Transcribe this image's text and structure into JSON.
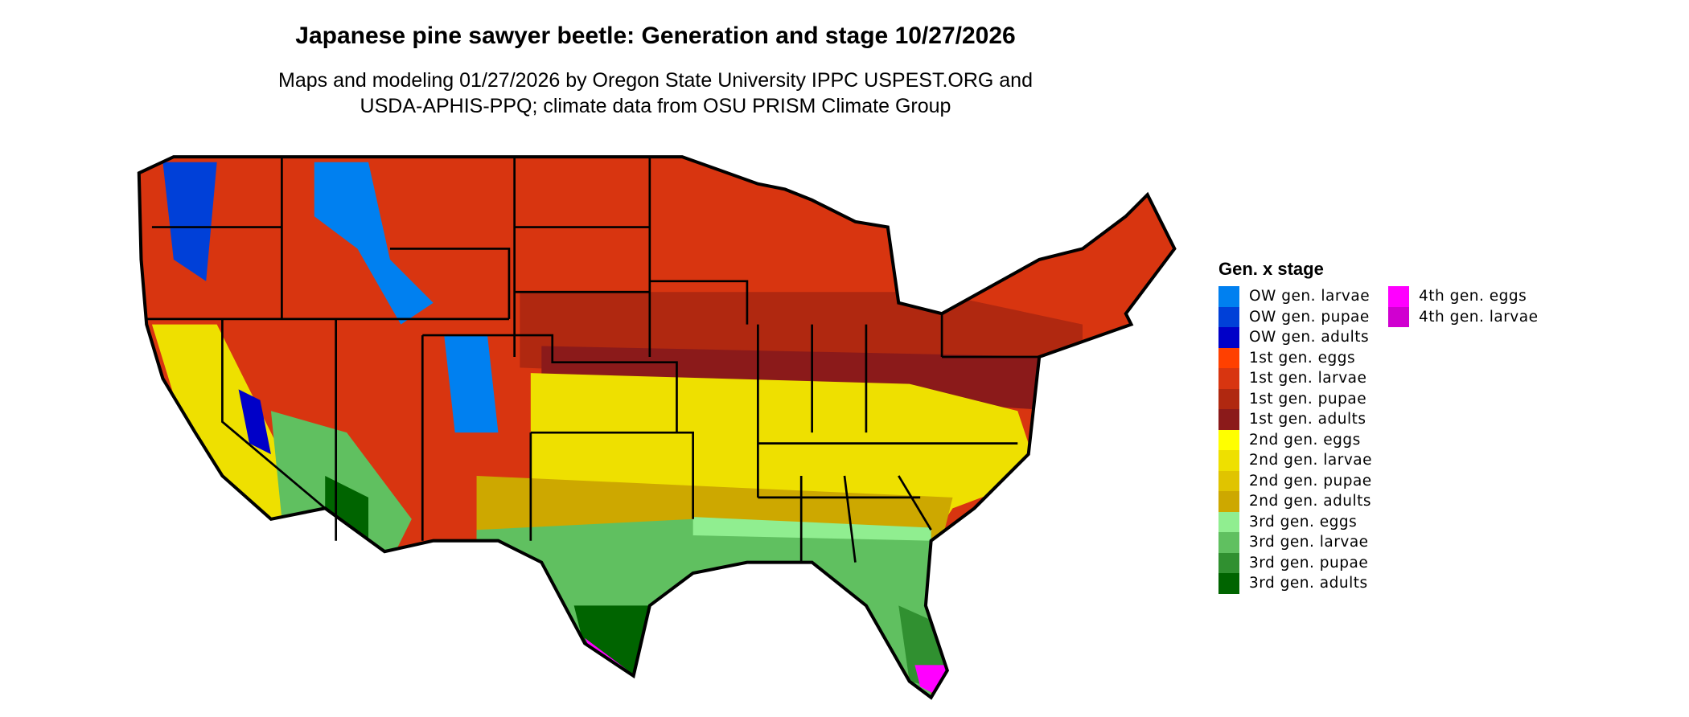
{
  "title": "Japanese pine sawyer beetle: Generation and stage 10/27/2026",
  "subtitle_line1": "Maps and modeling 01/27/2026 by Oregon State University IPPC USPEST.ORG and",
  "subtitle_line2": "USDA-APHIS-PPQ; climate data from OSU PRISM Climate Group",
  "legend": {
    "title": "Gen. x stage",
    "col1": [
      {
        "label": "OW gen. larvae",
        "color": "#0080f0"
      },
      {
        "label": "OW gen. pupae",
        "color": "#0040d8"
      },
      {
        "label": "OW gen. adults",
        "color": "#0000c8"
      },
      {
        "label": "1st gen. eggs",
        "color": "#ff4000"
      },
      {
        "label": "1st gen. larvae",
        "color": "#d83510"
      },
      {
        "label": "1st gen. pupae",
        "color": "#b02810"
      },
      {
        "label": "1st gen. adults",
        "color": "#8b1a1a"
      },
      {
        "label": "2nd gen. eggs",
        "color": "#ffff00"
      },
      {
        "label": "2nd gen. larvae",
        "color": "#eee000"
      },
      {
        "label": "2nd gen. pupae",
        "color": "#e0c400"
      },
      {
        "label": "2nd gen. adults",
        "color": "#cda800"
      },
      {
        "label": "3rd gen. eggs",
        "color": "#90ee90"
      },
      {
        "label": "3rd gen. larvae",
        "color": "#60c060"
      },
      {
        "label": "3rd gen. pupae",
        "color": "#309030"
      },
      {
        "label": "3rd gen. adults",
        "color": "#006400"
      }
    ],
    "col2": [
      {
        "label": "4th gen. eggs",
        "color": "#ff00ff"
      },
      {
        "label": "4th gen. larvae",
        "color": "#d000d0"
      }
    ]
  }
}
